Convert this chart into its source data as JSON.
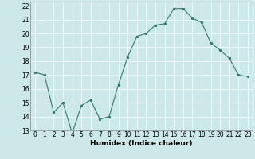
{
  "x": [
    0,
    1,
    2,
    3,
    4,
    5,
    6,
    7,
    8,
    9,
    10,
    11,
    12,
    13,
    14,
    15,
    16,
    17,
    18,
    19,
    20,
    21,
    22,
    23
  ],
  "y": [
    17.2,
    17.0,
    14.3,
    15.0,
    12.8,
    14.8,
    15.2,
    13.8,
    14.0,
    16.3,
    18.3,
    19.8,
    20.0,
    20.6,
    20.7,
    21.8,
    21.8,
    21.1,
    20.8,
    19.3,
    18.8,
    18.2,
    17.0,
    16.9
  ],
  "xlabel": "Humidex (Indice chaleur)",
  "xlim": [
    -0.5,
    23.5
  ],
  "ylim": [
    13,
    22.3
  ],
  "yticks": [
    13,
    14,
    15,
    16,
    17,
    18,
    19,
    20,
    21,
    22
  ],
  "xticks": [
    0,
    1,
    2,
    3,
    4,
    5,
    6,
    7,
    8,
    9,
    10,
    11,
    12,
    13,
    14,
    15,
    16,
    17,
    18,
    19,
    20,
    21,
    22,
    23
  ],
  "line_color": "#2e7d6e",
  "marker_color": "#2e7d6e",
  "bg_color": "#cce8e8",
  "grid_color": "#ffffff",
  "label_fontsize": 6.5,
  "tick_fontsize": 5.5
}
